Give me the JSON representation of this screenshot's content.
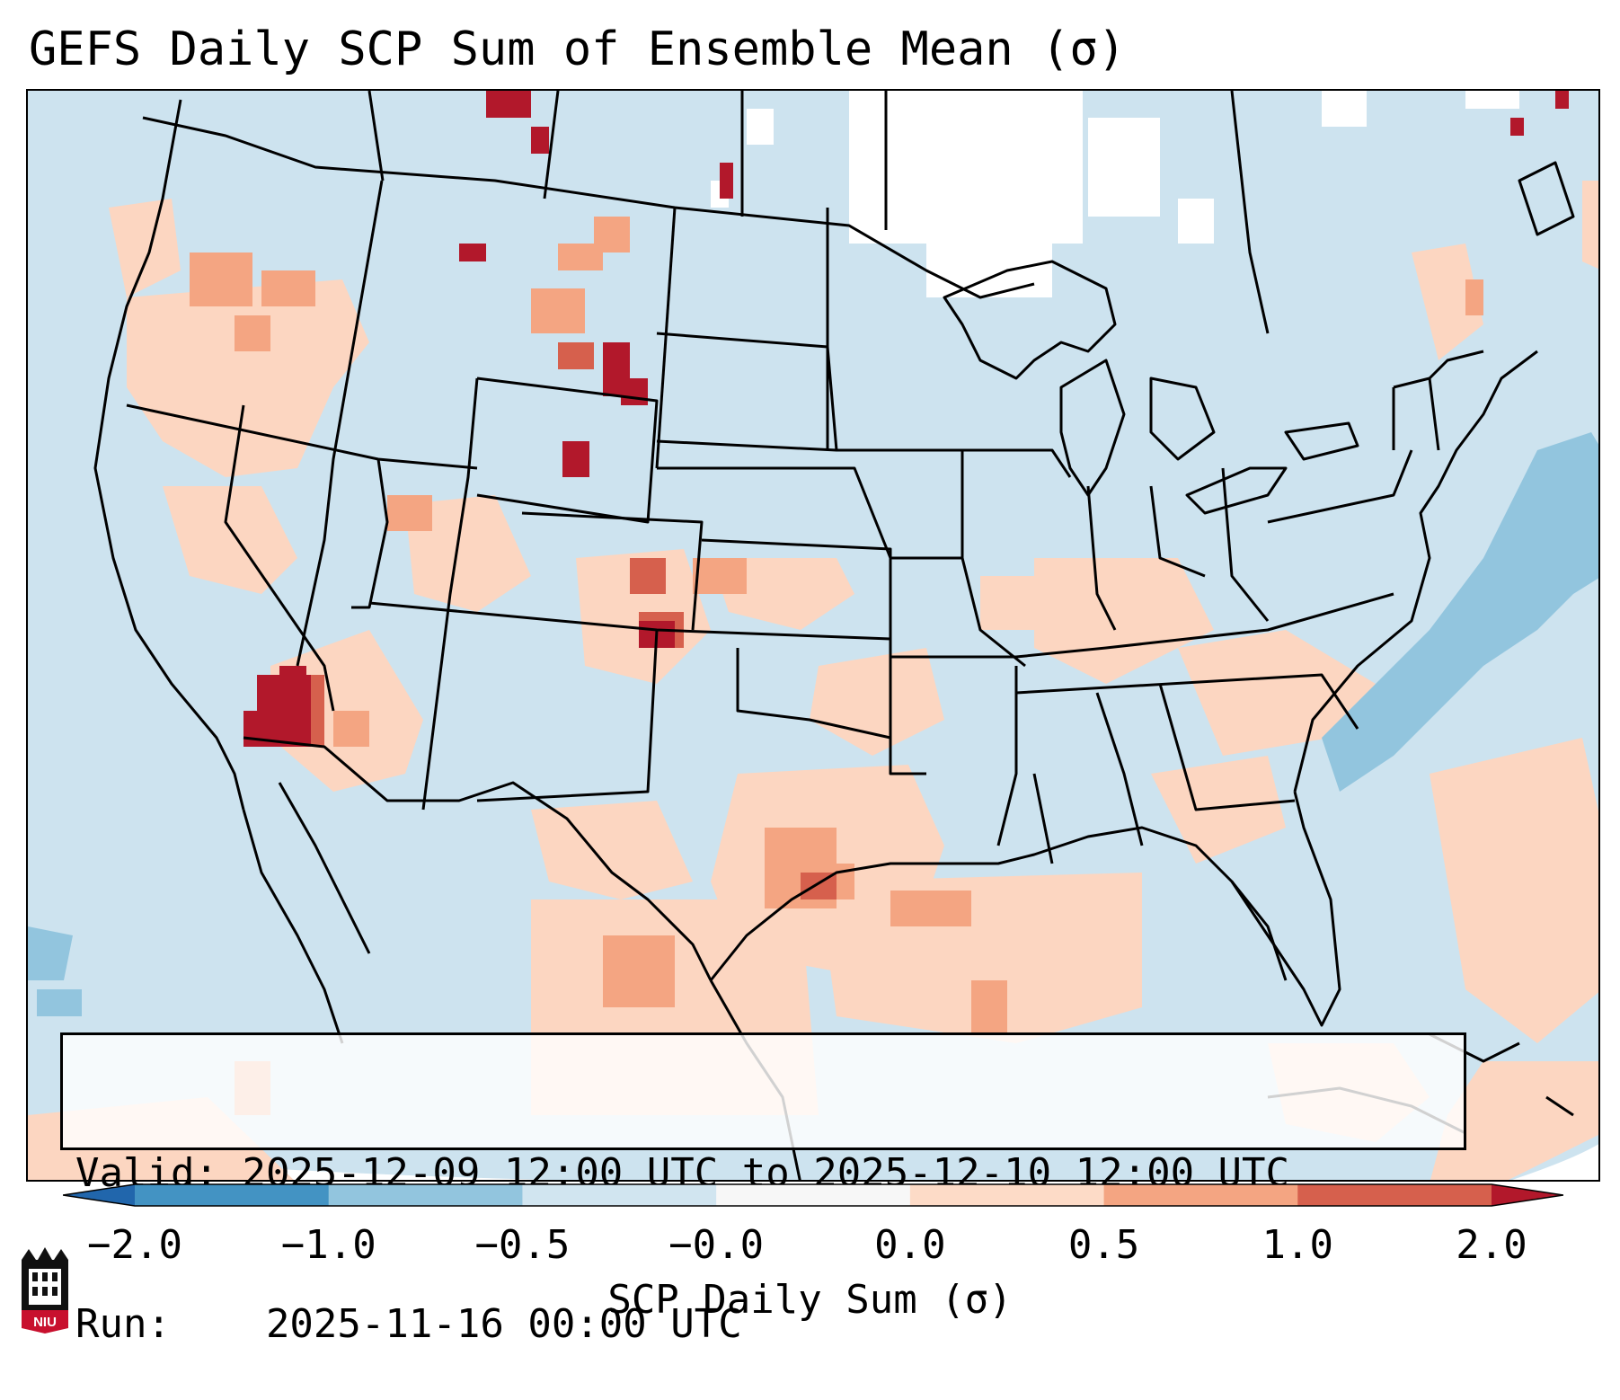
{
  "title": "GEFS Daily SCP Sum of Ensemble Mean (σ)",
  "info": {
    "valid_label": "Valid:",
    "valid_value": "2025-12-09 12:00 UTC to 2025-12-10 12:00 UTC",
    "run_label": "Run:",
    "run_value": "2025-11-16 00:00 UTC"
  },
  "colorbar": {
    "label": "SCP Daily Sum (σ)",
    "ticks": [
      "−2.0",
      "−1.0",
      "−0.5",
      "−0.0",
      "0.0",
      "0.5",
      "1.0",
      "2.0"
    ],
    "bins": [
      {
        "from": -2.0,
        "to": -1.0,
        "color": "#4393c3"
      },
      {
        "from": -1.0,
        "to": -0.5,
        "color": "#92c5de"
      },
      {
        "from": -0.5,
        "to": -0.0,
        "color": "#d1e5f0"
      },
      {
        "from": -0.0,
        "to": 0.0,
        "color": "#f7f7f7"
      },
      {
        "from": 0.0,
        "to": 0.5,
        "color": "#fddbc7"
      },
      {
        "from": 0.5,
        "to": 1.0,
        "color": "#f4a582"
      },
      {
        "from": 1.0,
        "to": 2.0,
        "color": "#d6604d"
      }
    ],
    "under_color": "#2166ac",
    "over_color": "#b2182b"
  },
  "map": {
    "region": "Contiguous United States",
    "projection": "Lambert Conformal",
    "background_color": "#d1e5f0"
  },
  "logo_text": "NIU"
}
